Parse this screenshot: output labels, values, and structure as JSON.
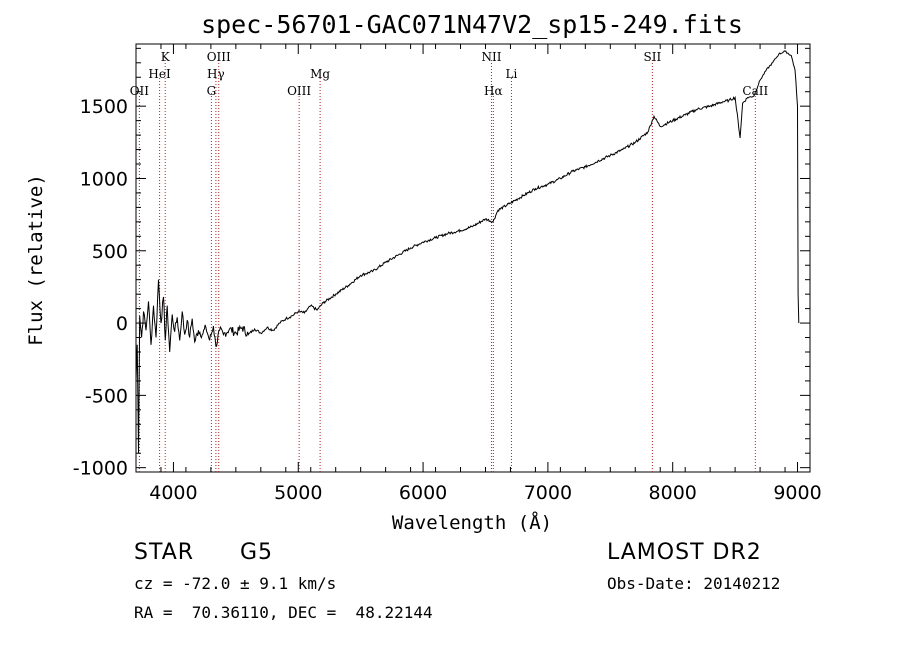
{
  "chart_data": {
    "type": "line",
    "title": "spec-56701-GAC071N47V2_sp15-249.fits",
    "xlabel": "Wavelength (Å)",
    "ylabel": "Flux (relative)",
    "xlim": [
      3700,
      9100
    ],
    "ylim": [
      -1030,
      1930
    ],
    "xticks": [
      4000,
      5000,
      6000,
      7000,
      8000,
      9000
    ],
    "yticks": [
      -1000,
      -500,
      0,
      500,
      1000,
      1500
    ],
    "series": [
      {
        "values": [
          [
            3700,
            -400
          ],
          [
            3710,
            -150
          ],
          [
            3720,
            -900
          ],
          [
            3730,
            50
          ],
          [
            3745,
            -100
          ],
          [
            3760,
            80
          ],
          [
            3780,
            -50
          ],
          [
            3800,
            150
          ],
          [
            3820,
            -150
          ],
          [
            3840,
            120
          ],
          [
            3860,
            -100
          ],
          [
            3880,
            300
          ],
          [
            3900,
            0
          ],
          [
            3920,
            180
          ],
          [
            3935,
            -120
          ],
          [
            3950,
            120
          ],
          [
            3970,
            -200
          ],
          [
            3990,
            60
          ],
          [
            4010,
            -60
          ],
          [
            4030,
            40
          ],
          [
            4050,
            -120
          ],
          [
            4070,
            80
          ],
          [
            4090,
            -80
          ],
          [
            4110,
            20
          ],
          [
            4130,
            -100
          ],
          [
            4150,
            30
          ],
          [
            4170,
            -130
          ],
          [
            4200,
            -50
          ],
          [
            4230,
            -80
          ],
          [
            4260,
            -30
          ],
          [
            4290,
            -120
          ],
          [
            4320,
            -20
          ],
          [
            4340,
            -160
          ],
          [
            4370,
            -50
          ],
          [
            4400,
            -80
          ],
          [
            4450,
            -40
          ],
          [
            4500,
            -70
          ],
          [
            4550,
            -30
          ],
          [
            4600,
            -80
          ],
          [
            4650,
            -40
          ],
          [
            4700,
            -70
          ],
          [
            4750,
            -30
          ],
          [
            4800,
            -50
          ],
          [
            4850,
            0
          ],
          [
            4900,
            30
          ],
          [
            4950,
            50
          ],
          [
            5000,
            80
          ],
          [
            5050,
            70
          ],
          [
            5100,
            120
          ],
          [
            5150,
            90
          ],
          [
            5200,
            140
          ],
          [
            5300,
            200
          ],
          [
            5400,
            260
          ],
          [
            5500,
            330
          ],
          [
            5600,
            360
          ],
          [
            5700,
            420
          ],
          [
            5800,
            470
          ],
          [
            5900,
            520
          ],
          [
            6000,
            560
          ],
          [
            6100,
            590
          ],
          [
            6200,
            620
          ],
          [
            6300,
            640
          ],
          [
            6400,
            670
          ],
          [
            6500,
            720
          ],
          [
            6560,
            700
          ],
          [
            6600,
            780
          ],
          [
            6700,
            830
          ],
          [
            6800,
            880
          ],
          [
            6900,
            930
          ],
          [
            7000,
            960
          ],
          [
            7100,
            1000
          ],
          [
            7200,
            1050
          ],
          [
            7300,
            1080
          ],
          [
            7400,
            1120
          ],
          [
            7500,
            1160
          ],
          [
            7600,
            1200
          ],
          [
            7700,
            1250
          ],
          [
            7800,
            1320
          ],
          [
            7850,
            1430
          ],
          [
            7900,
            1360
          ],
          [
            8000,
            1400
          ],
          [
            8100,
            1440
          ],
          [
            8200,
            1480
          ],
          [
            8300,
            1500
          ],
          [
            8400,
            1530
          ],
          [
            8450,
            1540
          ],
          [
            8500,
            1560
          ],
          [
            8540,
            1280
          ],
          [
            8560,
            1520
          ],
          [
            8600,
            1560
          ],
          [
            8650,
            1570
          ],
          [
            8700,
            1680
          ],
          [
            8750,
            1750
          ],
          [
            8800,
            1800
          ],
          [
            8850,
            1860
          ],
          [
            8900,
            1880
          ],
          [
            8950,
            1850
          ],
          [
            8980,
            1750
          ],
          [
            9000,
            1500
          ],
          [
            9005,
            200
          ],
          [
            9010,
            0
          ]
        ]
      }
    ],
    "lines": [
      {
        "label": "OII",
        "x": 3727,
        "tier": 3
      },
      {
        "label": "HeI",
        "x": 3889,
        "tier": 2
      },
      {
        "label": "K",
        "x": 3934,
        "tier": 1
      },
      {
        "label": "G",
        "x": 4304,
        "tier": 3
      },
      {
        "label": "Hγ",
        "x": 4340,
        "tier": 2
      },
      {
        "label": "OIII",
        "x": 4363,
        "tier": 1
      },
      {
        "label": "OIII",
        "x": 5007,
        "tier": 3
      },
      {
        "label": "Mg",
        "x": 5175,
        "tier": 2
      },
      {
        "label": "NII",
        "x": 6548,
        "tier": 1
      },
      {
        "label": "Hα",
        "x": 6563,
        "tier": 3
      },
      {
        "label": "Li",
        "x": 6708,
        "tier": 2
      },
      {
        "label": "SII",
        "x": 7837,
        "tier": 1
      },
      {
        "label": "CaII",
        "x": 8662,
        "tier": 3
      }
    ]
  },
  "info": {
    "class": "STAR",
    "subclass": "G5",
    "survey": "LAMOST DR2",
    "cz": "cz = -72.0 ± 9.1 km/s",
    "obs_date": "Obs-Date: 20140212",
    "coords": "RA =  70.36110, DEC =  48.22144"
  }
}
